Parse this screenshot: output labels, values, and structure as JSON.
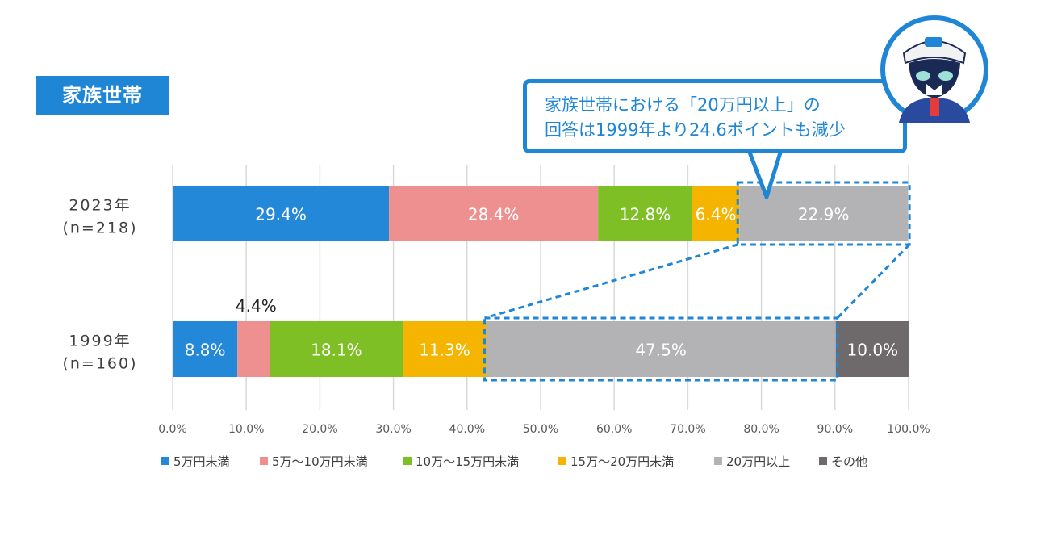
{
  "section_label": "家族世帯",
  "callout": {
    "line1": "家族世帯における「20万円以上」の",
    "line2": "回答は1999年より24.6ポイントも減少"
  },
  "colors": {
    "accent": "#1f86d6",
    "series": [
      "#2488d8",
      "#ef9090",
      "#7fbf26",
      "#f4b400",
      "#b3b3b5",
      "#6e6a6b"
    ]
  },
  "chart_data": {
    "type": "bar",
    "orientation": "horizontal",
    "stacked": true,
    "categories": [
      {
        "label_line1": "2023年",
        "label_line2": "(n=218)"
      },
      {
        "label_line1": "1999年",
        "label_line2": "(n=160)"
      }
    ],
    "series": [
      {
        "name": "5万円未満",
        "values": [
          29.4,
          8.8
        ],
        "labels": [
          "29.4%",
          "8.8%"
        ]
      },
      {
        "name": "5万～10万円未満",
        "values": [
          28.4,
          4.4
        ],
        "labels": [
          "28.4%",
          "4.4%"
        ]
      },
      {
        "name": "10万～15万円未満",
        "values": [
          12.8,
          18.1
        ],
        "labels": [
          "12.8%",
          "18.1%"
        ]
      },
      {
        "name": "15万～20万円未満",
        "values": [
          6.4,
          11.3
        ],
        "labels": [
          "6.4%",
          "11.3%"
        ]
      },
      {
        "name": "20万円以上",
        "values": [
          22.9,
          47.5
        ],
        "labels": [
          "22.9%",
          "47.5%"
        ]
      },
      {
        "name": "その他",
        "values": [
          0,
          10.0
        ],
        "labels": [
          "",
          "10.0%"
        ]
      }
    ],
    "xlim": [
      0,
      100
    ],
    "x_ticks": [
      "0.0%",
      "10.0%",
      "20.0%",
      "30.0%",
      "40.0%",
      "50.0%",
      "60.0%",
      "70.0%",
      "80.0%",
      "90.0%",
      "100.0%"
    ],
    "grid": true,
    "legend_position": "bottom",
    "highlight_series": "20万円以上"
  }
}
